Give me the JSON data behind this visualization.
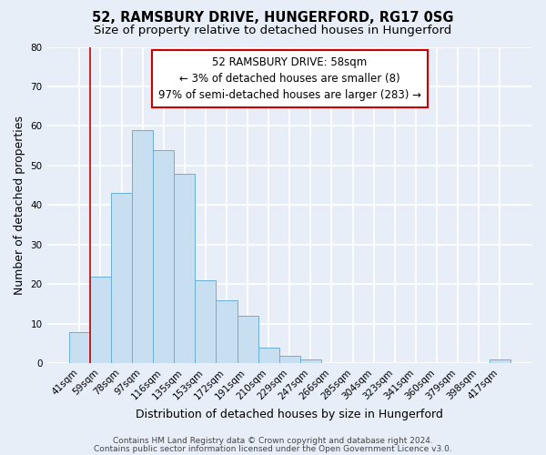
{
  "title": "52, RAMSBURY DRIVE, HUNGERFORD, RG17 0SG",
  "subtitle": "Size of property relative to detached houses in Hungerford",
  "xlabel": "Distribution of detached houses by size in Hungerford",
  "ylabel": "Number of detached properties",
  "bar_labels": [
    "41sqm",
    "59sqm",
    "78sqm",
    "97sqm",
    "116sqm",
    "135sqm",
    "153sqm",
    "172sqm",
    "191sqm",
    "210sqm",
    "229sqm",
    "247sqm",
    "266sqm",
    "285sqm",
    "304sqm",
    "323sqm",
    "341sqm",
    "360sqm",
    "379sqm",
    "398sqm",
    "417sqm"
  ],
  "bar_heights": [
    8,
    22,
    43,
    59,
    54,
    48,
    21,
    16,
    12,
    4,
    2,
    1,
    0,
    0,
    0,
    0,
    0,
    0,
    0,
    0,
    1
  ],
  "bar_color": "#c8dff2",
  "bar_edge_color": "#6baed6",
  "annotation_box_text": "52 RAMSBURY DRIVE: 58sqm\n← 3% of detached houses are smaller (8)\n97% of semi-detached houses are larger (283) →",
  "annotation_box_color": "#ffffff",
  "annotation_box_edge_color": "#cc0000",
  "ylim": [
    0,
    80
  ],
  "yticks": [
    0,
    10,
    20,
    30,
    40,
    50,
    60,
    70,
    80
  ],
  "footer_line1": "Contains HM Land Registry data © Crown copyright and database right 2024.",
  "footer_line2": "Contains public sector information licensed under the Open Government Licence v3.0.",
  "bg_color": "#e8eef8",
  "plot_bg_color": "#e8eef8",
  "grid_color": "#ffffff",
  "title_fontsize": 10.5,
  "subtitle_fontsize": 9.5,
  "axis_label_fontsize": 9,
  "tick_fontsize": 7.5,
  "annotation_fontsize": 8.5,
  "footer_fontsize": 6.5
}
